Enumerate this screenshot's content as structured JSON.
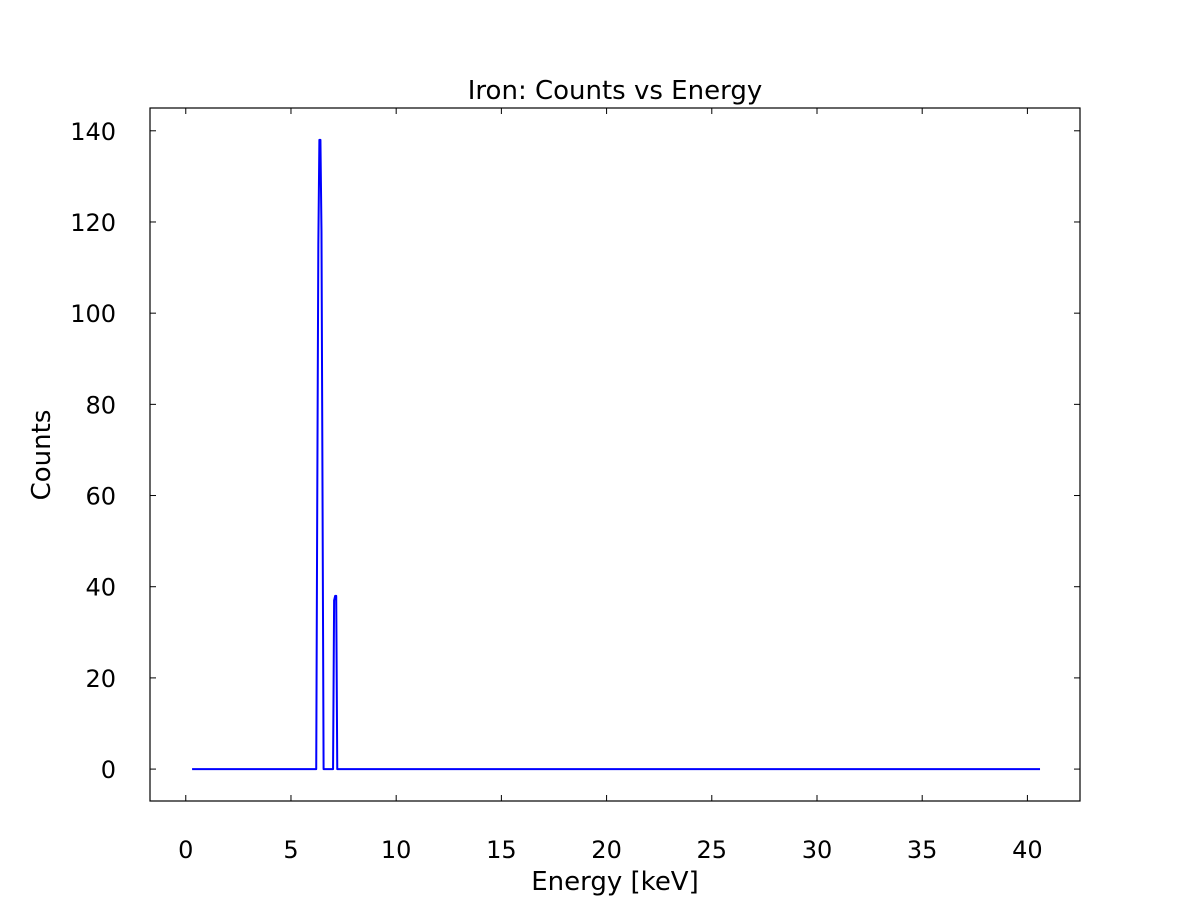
{
  "chart_data": {
    "type": "line",
    "title": "Iron: Counts vs Energy",
    "xlabel": "Energy [keV]",
    "ylabel": "Counts",
    "xlim": [
      -1.7,
      42.5
    ],
    "ylim": [
      -7,
      145
    ],
    "xticks": [
      0,
      5,
      10,
      15,
      20,
      25,
      30,
      35,
      40
    ],
    "yticks": [
      0,
      20,
      40,
      60,
      80,
      100,
      120,
      140
    ],
    "grid": false,
    "series": [
      {
        "color": "#0000ff",
        "x": [
          0.3,
          6.2,
          6.25,
          6.3,
          6.35,
          6.4,
          6.45,
          6.5,
          6.55,
          6.6,
          6.7,
          6.9,
          7.0,
          7.05,
          7.1,
          7.15,
          7.2,
          7.3,
          40.6
        ],
        "y": [
          0,
          0,
          60,
          115,
          138,
          138,
          118,
          60,
          0,
          0,
          0,
          0,
          0,
          37,
          38,
          38,
          0,
          0,
          0
        ]
      }
    ]
  }
}
